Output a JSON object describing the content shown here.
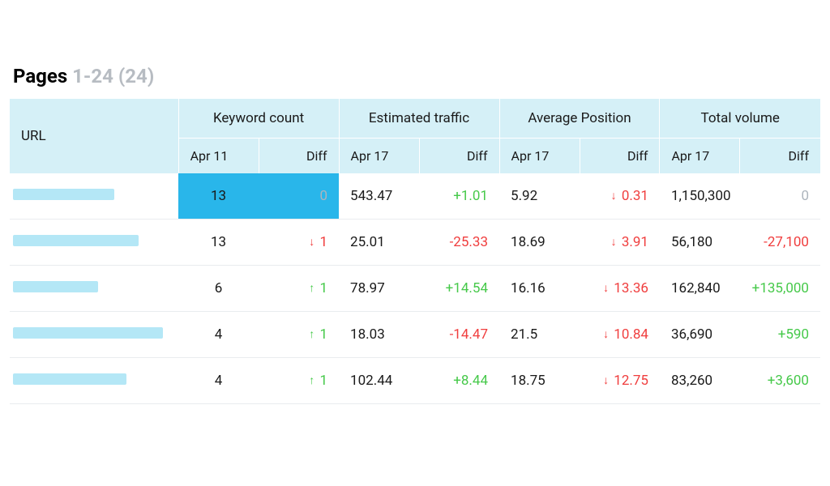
{
  "title": {
    "label": "Pages",
    "range": "1-24 (24)"
  },
  "table": {
    "type": "table",
    "columns": {
      "url": "URL",
      "keyword_count": {
        "label": "Keyword count",
        "date": "Apr 11",
        "diff": "Diff"
      },
      "estimated_traffic": {
        "label": "Estimated traffic",
        "date": "Apr 17",
        "diff": "Diff"
      },
      "avg_position": {
        "label": "Average Position",
        "date": "Apr 17",
        "diff": "Diff"
      },
      "total_volume": {
        "label": "Total volume",
        "date": "Apr 17",
        "diff": "Diff"
      }
    },
    "colors": {
      "header_bg": "#d5f0f7",
      "highlight_header_bg": "#4bc1eb",
      "highlight_subheader_bg": "#29b6ea",
      "url_bar": "#b4e7f6",
      "positive": "#46c94a",
      "negative": "#f03e3e",
      "zero": "#adb5bd",
      "row_border": "#e9ecef",
      "text": "#1a1a1a",
      "title_muted": "#b7bcc2"
    },
    "rows": [
      {
        "url_bar_width": 125,
        "highlighted": true,
        "keyword_count": {
          "value": "13",
          "diff": "0",
          "diff_dir": "zero"
        },
        "estimated_traffic": {
          "value": "543.47",
          "diff": "+1.01",
          "diff_dir": "pos"
        },
        "avg_position": {
          "value": "5.92",
          "diff": "0.31",
          "diff_dir": "neg-arrow"
        },
        "total_volume": {
          "value": "1,150,300",
          "diff": "0",
          "diff_dir": "zero"
        }
      },
      {
        "url_bar_width": 155,
        "keyword_count": {
          "value": "13",
          "diff": "1",
          "diff_dir": "neg-arrow"
        },
        "estimated_traffic": {
          "value": "25.01",
          "diff": "-25.33",
          "diff_dir": "neg"
        },
        "avg_position": {
          "value": "18.69",
          "diff": "3.91",
          "diff_dir": "neg-arrow"
        },
        "total_volume": {
          "value": "56,180",
          "diff": "-27,100",
          "diff_dir": "neg"
        }
      },
      {
        "url_bar_width": 105,
        "keyword_count": {
          "value": "6",
          "diff": "1",
          "diff_dir": "pos-arrow"
        },
        "estimated_traffic": {
          "value": "78.97",
          "diff": "+14.54",
          "diff_dir": "pos"
        },
        "avg_position": {
          "value": "16.16",
          "diff": "13.36",
          "diff_dir": "neg-arrow"
        },
        "total_volume": {
          "value": "162,840",
          "diff": "+135,000",
          "diff_dir": "pos"
        }
      },
      {
        "url_bar_width": 185,
        "keyword_count": {
          "value": "4",
          "diff": "1",
          "diff_dir": "pos-arrow"
        },
        "estimated_traffic": {
          "value": "18.03",
          "diff": "-14.47",
          "diff_dir": "neg"
        },
        "avg_position": {
          "value": "21.5",
          "diff": "10.84",
          "diff_dir": "neg-arrow"
        },
        "total_volume": {
          "value": "36,690",
          "diff": "+590",
          "diff_dir": "pos"
        }
      },
      {
        "url_bar_width": 140,
        "keyword_count": {
          "value": "4",
          "diff": "1",
          "diff_dir": "pos-arrow"
        },
        "estimated_traffic": {
          "value": "102.44",
          "diff": "+8.44",
          "diff_dir": "pos"
        },
        "avg_position": {
          "value": "18.75",
          "diff": "12.75",
          "diff_dir": "neg-arrow"
        },
        "total_volume": {
          "value": "83,260",
          "diff": "+3,600",
          "diff_dir": "pos"
        }
      }
    ]
  },
  "fonts": {
    "title_size_pt": 24,
    "header_size_pt": 17,
    "cell_size_pt": 17
  }
}
